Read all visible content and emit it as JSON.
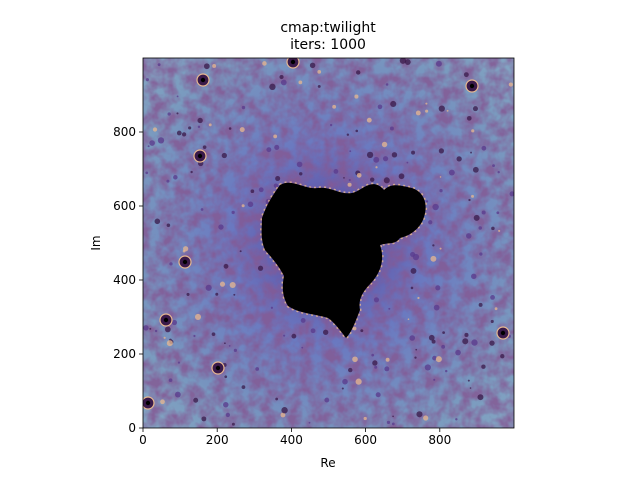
{
  "chart_data": {
    "type": "heatmap",
    "title_lines": [
      "cmap:twilight",
      "iters: 1000"
    ],
    "xlabel": "Re",
    "ylabel": "Im",
    "xlim": [
      0,
      1000
    ],
    "ylim": [
      0,
      1000
    ],
    "x_ticks": [
      0,
      200,
      400,
      600,
      800
    ],
    "y_ticks": [
      0,
      200,
      400,
      600,
      800
    ],
    "colormap": "twilight",
    "iterations": 1000,
    "grid": false,
    "legend": "none",
    "colors": {
      "interior": "#000000",
      "background_blue": "#7a9bbf",
      "mid_blue": "#6a7fc0",
      "purple": "#5a3a8c",
      "dark_purple": "#3a1a4a",
      "highlight": "#e8b890"
    }
  }
}
